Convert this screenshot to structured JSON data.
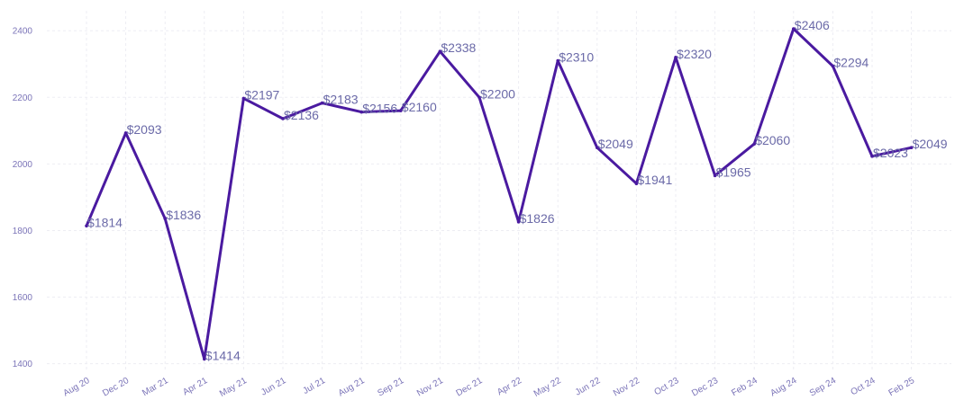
{
  "chart_data": {
    "type": "line",
    "title": "",
    "xlabel": "",
    "ylabel": "",
    "ylim": [
      1380,
      2460
    ],
    "yticks": [
      1400,
      1600,
      1800,
      2000,
      2200,
      2400
    ],
    "grid": true,
    "categories": [
      "Aug 20",
      "Dec 20",
      "Mar 21",
      "Apr 21",
      "May 21",
      "Jun 21",
      "Jul 21",
      "Aug 21",
      "Sep 21",
      "Nov 21",
      "Dec 21",
      "Apr 22",
      "May 22",
      "Jun 22",
      "Nov 22",
      "Oct 23",
      "Dec 23",
      "Feb 24",
      "Aug 24",
      "Sep 24",
      "Oct 24",
      "Feb 25"
    ],
    "values": [
      1814,
      2093,
      1836,
      1414,
      2197,
      2136,
      2183,
      2156,
      2160,
      2338,
      2200,
      1826,
      2310,
      2049,
      1941,
      2320,
      1965,
      2060,
      2406,
      2294,
      2023,
      2049
    ],
    "labels": [
      "$1814",
      "$2093",
      "$1836",
      "$1414",
      "$2197",
      "$2136",
      "$2183",
      "$2156",
      "$2160",
      "$2338",
      "$2200",
      "$1826",
      "$2310",
      "$2049",
      "$1941",
      "$2320",
      "$1965",
      "$2060",
      "$2406",
      "$2294",
      "$2023",
      "$2049"
    ],
    "colors": {
      "line": "#4a1aa0",
      "tick_text": "#7b74b8",
      "label_text": "#6b6aa8",
      "grid": "#ededf3"
    }
  }
}
